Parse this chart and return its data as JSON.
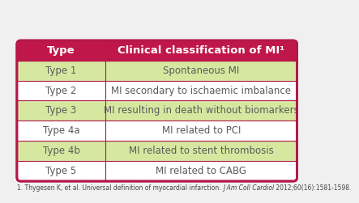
{
  "header_bg": "#c0174a",
  "header_text_color": "#ffffff",
  "col1_header": "Type",
  "col2_header": "Clinical classification of MI¹",
  "rows": [
    {
      "type": "Type 1",
      "desc": "Spontaneous MI",
      "shaded": true
    },
    {
      "type": "Type 2",
      "desc": "MI secondary to ischaemic imbalance",
      "shaded": false
    },
    {
      "type": "Type 3",
      "desc": "MI resulting in death without biomarkers",
      "shaded": true
    },
    {
      "type": "Type 4a",
      "desc": "MI related to PCI",
      "shaded": false
    },
    {
      "type": "Type 4b",
      "desc": "MI related to stent thrombosis",
      "shaded": true
    },
    {
      "type": "Type 5",
      "desc": "MI related to CABG",
      "shaded": false
    }
  ],
  "shaded_bg": "#d6e8a0",
  "unshaded_bg": "#ffffff",
  "border_color": "#b5174a",
  "text_color": "#5a5a5a",
  "footnote_plain": "1. Thygesen K, et al. Universal definition of myocardial infarction. ",
  "footnote_italic": "J Am Coll Cardiol",
  "footnote_plain2": " 2012;60(16):1581-1598.",
  "bg_color": "#f0f0f0"
}
